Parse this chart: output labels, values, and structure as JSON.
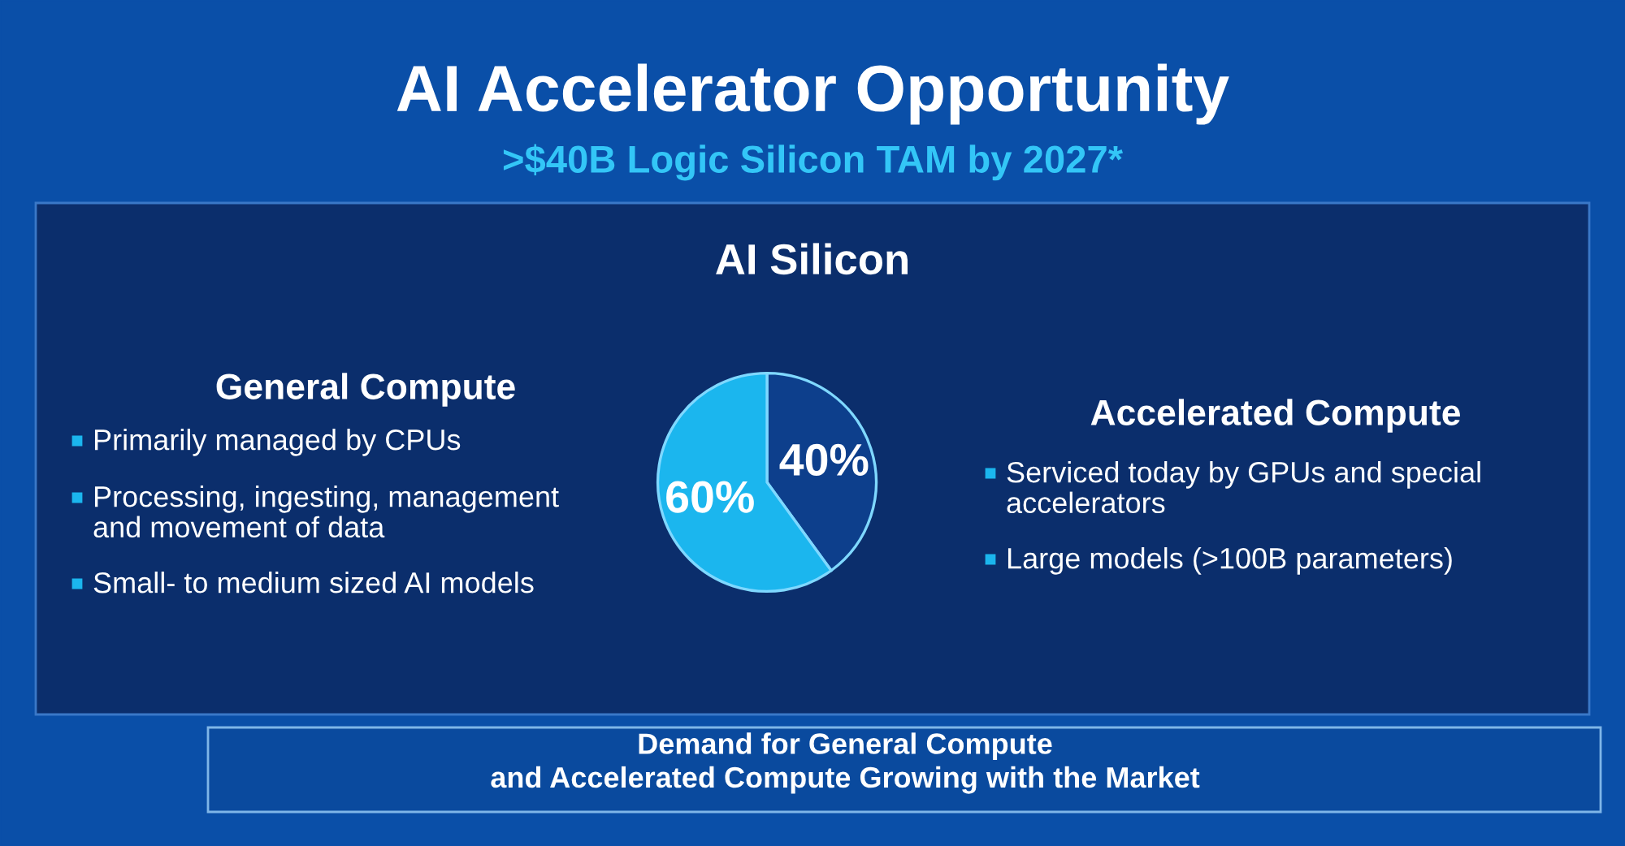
{
  "chart_data": {
    "type": "pie",
    "title": "AI Accelerator Opportunity",
    "subtitle": ">$40B Logic Silicon TAM by 2027*",
    "categories": [
      null,
      null
    ],
    "values": [
      40,
      60
    ],
    "colors": [
      "#0d3f8c",
      "#1bb6ee"
    ],
    "value_labels": [
      "40%",
      "60%"
    ],
    "annotations": [
      "AI Silicon",
      "General Compute",
      "Primarily managed by CPUs",
      "Processing, ingesting, management\nand movement of data",
      "Small- to medium sized AI models",
      "Accelerated Compute",
      "Serviced today by GPUs and special\naccelerators",
      "Large models (>100B parameters)",
      "Demand for General Compute\nand Accelerated Compute Growing with the Market"
    ]
  }
}
